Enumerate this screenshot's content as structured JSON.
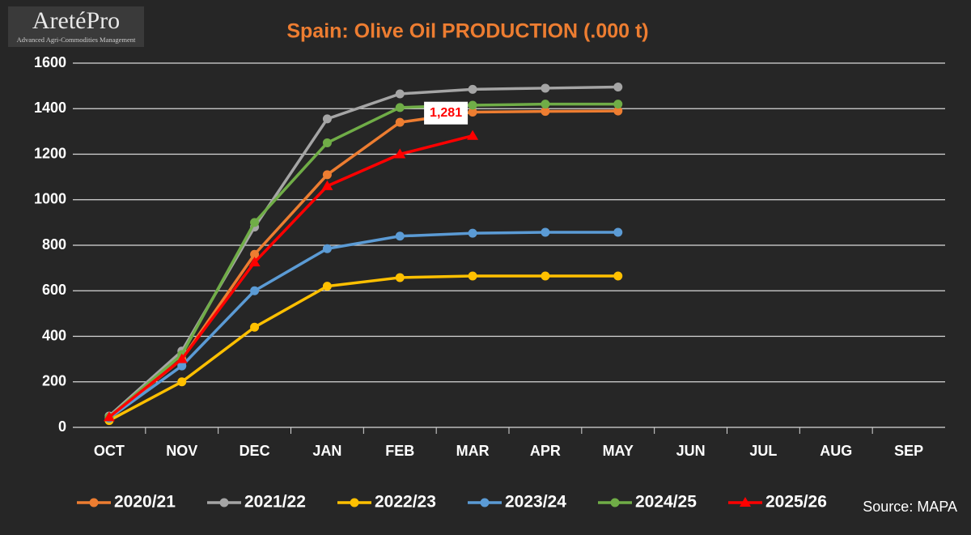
{
  "logo": {
    "name": "AretéPro",
    "tagline": "Advanced Agri-Commodities Management"
  },
  "source": "Source: MAPA",
  "chart_data": {
    "type": "line",
    "title": "Spain: Olive Oil PRODUCTION (.000 t)",
    "categories": [
      "OCT",
      "NOV",
      "DEC",
      "JAN",
      "FEB",
      "MAR",
      "APR",
      "MAY",
      "JUN",
      "JUL",
      "AUG",
      "SEP"
    ],
    "ylim": [
      0,
      1600
    ],
    "yticks": [
      0,
      200,
      400,
      600,
      800,
      1000,
      1200,
      1400,
      1600
    ],
    "grid": true,
    "legend": "bottom",
    "series": [
      {
        "name": "2020/21",
        "color": "#ed7d31",
        "marker": "circle",
        "values": [
          40,
          300,
          760,
          1110,
          1340,
          1385,
          1388,
          1390,
          null,
          null,
          null,
          null
        ]
      },
      {
        "name": "2021/22",
        "color": "#a5a5a5",
        "marker": "circle",
        "values": [
          50,
          335,
          880,
          1355,
          1465,
          1485,
          1490,
          1495,
          null,
          null,
          null,
          null
        ]
      },
      {
        "name": "2022/23",
        "color": "#ffc000",
        "marker": "circle",
        "values": [
          30,
          200,
          440,
          620,
          658,
          665,
          665,
          665,
          null,
          null,
          null,
          null
        ]
      },
      {
        "name": "2023/24",
        "color": "#5b9bd5",
        "marker": "circle",
        "values": [
          40,
          270,
          600,
          785,
          840,
          853,
          857,
          857,
          null,
          null,
          null,
          null
        ]
      },
      {
        "name": "2024/25",
        "color": "#70ad47",
        "marker": "circle",
        "values": [
          45,
          320,
          900,
          1250,
          1405,
          1415,
          1420,
          1420,
          null,
          null,
          null,
          null
        ]
      },
      {
        "name": "2025/26",
        "color": "#ff0000",
        "marker": "triangle",
        "values": [
          45,
          300,
          725,
          1060,
          1200,
          1281,
          null,
          null,
          null,
          null,
          null,
          null
        ],
        "value_labels": [
          null,
          null,
          null,
          null,
          null,
          "1,281",
          null,
          null,
          null,
          null,
          null,
          null
        ]
      }
    ]
  }
}
